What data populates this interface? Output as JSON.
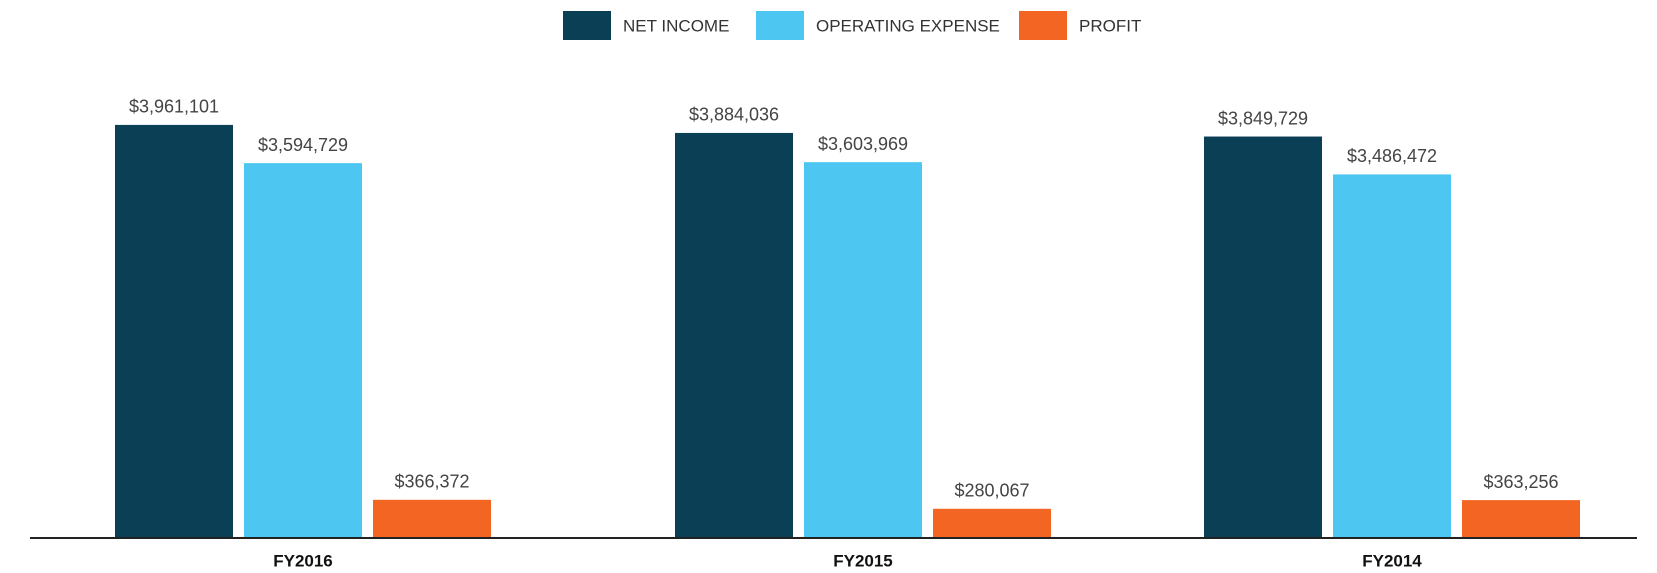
{
  "chart_data": {
    "type": "bar",
    "categories": [
      "FY2016",
      "FY2015",
      "FY2014"
    ],
    "series": [
      {
        "name": "NET INCOME",
        "color": "#0b3f55",
        "values": [
          3961101,
          3884036,
          3849729
        ],
        "value_labels": [
          "$3,961,101",
          "$3,884,036",
          "$3,849,729"
        ]
      },
      {
        "name": "OPERATING EXPENSE",
        "color": "#4dc7f2",
        "values": [
          3594729,
          3603969,
          3486472
        ],
        "value_labels": [
          "$3,594,729",
          "$3,603,969",
          "$3,486,472"
        ]
      },
      {
        "name": "PROFIT",
        "color": "#f26522",
        "values": [
          366372,
          280067,
          363256
        ],
        "value_labels": [
          "$366,372",
          "$280,067",
          "$363,256"
        ]
      }
    ],
    "ylim": [
      0,
      4200000
    ],
    "legend": "top"
  }
}
